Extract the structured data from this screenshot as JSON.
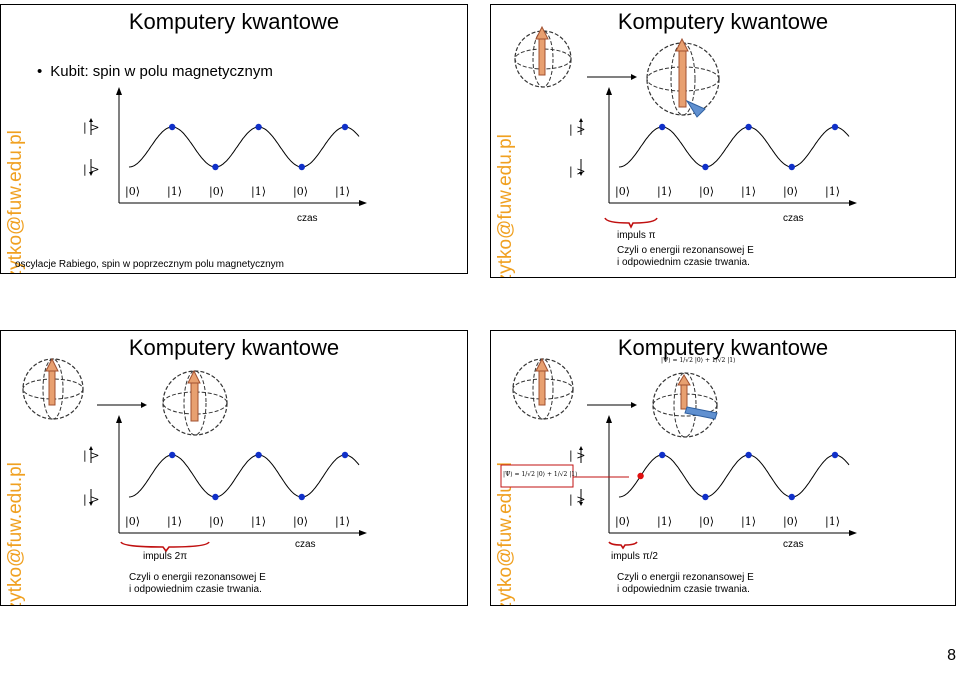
{
  "slides": [
    {
      "title": "Komputery kwantowe",
      "side_text": "Jacek.Szczytko@fuw.edu.pl",
      "bullet": "Kubit: spin w polu magnetycznym",
      "caption": "oscylacje Rabiego, spin w poprzecznym polu magnetycznym",
      "czas": "czas",
      "kets": [
        "|0⟩",
        "|1⟩",
        "|0⟩",
        "|1⟩",
        "|0⟩",
        "|1⟩"
      ],
      "spin_labels": [
        "| >",
        "| >"
      ]
    },
    {
      "title": "Komputery kwantowe",
      "side_text": "Jacek.Szczytko@fuw.edu.pl",
      "impuls": "impuls π",
      "caption_line1": "Czyli o energii rezonansowej E",
      "caption_line2": "i odpowiednim czasie trwania.",
      "czas": "czas",
      "kets": [
        "|0⟩",
        "|1⟩",
        "|0⟩",
        "|1⟩",
        "|0⟩",
        "|1⟩"
      ],
      "spin_labels": [
        "| >",
        "| >"
      ]
    },
    {
      "title": "Komputery kwantowe",
      "side_text": "Jacek.Szczytko@fuw.edu.pl",
      "impuls": "impuls 2π",
      "caption_line1": "Czyli o energii rezonansowej E",
      "caption_line2": "i odpowiednim czasie trwania.",
      "czas": "czas",
      "kets": [
        "|0⟩",
        "|1⟩",
        "|0⟩",
        "|1⟩",
        "|0⟩",
        "|1⟩"
      ],
      "spin_labels": [
        "| >",
        "| >"
      ]
    },
    {
      "title": "Komputery kwantowe",
      "side_text": "Jacek.Szczytko@fuw.edu.pl",
      "impuls": "impuls π/2",
      "caption_line1": "Czyli o energii rezonansowej E",
      "caption_line2": "i odpowiednim czasie trwania.",
      "czas": "czas",
      "psi_top": "|Ψ⟩ = 1/√2 |0⟩ + 1/√2 |1⟩",
      "psi_side": "|Ψ⟩ = 1/√2 |0⟩ + 1/√2 |1⟩",
      "kets": [
        "|0⟩",
        "|1⟩",
        "|0⟩",
        "|1⟩",
        "|0⟩",
        "|1⟩"
      ],
      "spin_labels": [
        "| >",
        "| >"
      ]
    }
  ],
  "page_number": "8",
  "colors": {
    "side_text": "#f0a020",
    "dot": "#1030c8",
    "dot_red": "#e01010",
    "brace": "#c01010"
  }
}
